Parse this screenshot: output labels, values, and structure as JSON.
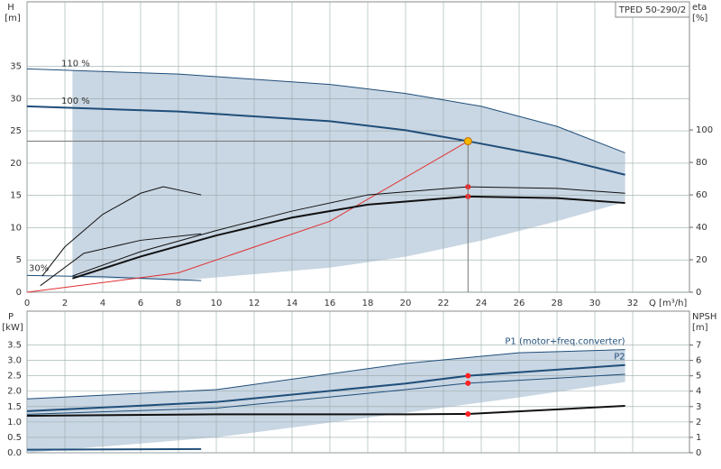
{
  "chart_data": [
    {
      "type": "line",
      "title": "TPED 50-290/2",
      "ylabel": "H",
      "yunit": "[m]",
      "y2label": "eta",
      "y2unit": "[%]",
      "xlabel": "Q [m³/h]",
      "xlim": [
        0,
        35
      ],
      "xticks": [
        0,
        2,
        4,
        6,
        8,
        10,
        12,
        14,
        16,
        18,
        20,
        22,
        24,
        26,
        28,
        30,
        32
      ],
      "ylim": [
        0,
        45
      ],
      "yticks": [
        0,
        5,
        10,
        15,
        20,
        25,
        30,
        35
      ],
      "y2lim": [
        0,
        179
      ],
      "y2ticks": [
        0,
        20,
        40,
        60,
        80,
        100
      ],
      "grid": true,
      "series": [
        {
          "style": "band",
          "color": "#c9d6e3",
          "x": [
            2.4,
            8,
            16,
            20,
            24,
            28,
            31.6
          ],
          "values": [
            34.4,
            33.8,
            32.2,
            30.8,
            28.8,
            25.7,
            21.6
          ],
          "lower": [
            2.3,
            1.8,
            3.8,
            5.5,
            8,
            11,
            14
          ]
        },
        {
          "name": "110 %",
          "color": "#1f4e79",
          "x": [
            0,
            8,
            16,
            20,
            24,
            28,
            31.6
          ],
          "values": [
            34.6,
            33.8,
            32.2,
            30.8,
            28.8,
            25.7,
            21.6
          ]
        },
        {
          "name": "100 %",
          "color": "#1f4e79",
          "width": 2,
          "x": [
            0,
            8,
            16,
            20,
            23.3,
            28,
            31.6
          ],
          "values": [
            28.8,
            28,
            26.5,
            25.1,
            23.4,
            20.8,
            18.2
          ]
        },
        {
          "name": "30%",
          "color": "#1f4e79",
          "x": [
            0,
            4,
            9.2
          ],
          "values": [
            2.6,
            2.4,
            1.8
          ]
        },
        {
          "color": "#e03030",
          "x": [
            0,
            8,
            16,
            23.3
          ],
          "values": [
            0,
            3,
            11,
            23.4
          ]
        },
        {
          "color": "#111",
          "width": 2,
          "axis": "y2",
          "x": [
            2.4,
            6,
            10,
            14,
            18,
            23.3,
            28,
            31.6
          ],
          "values": [
            8.5,
            22,
            35,
            46,
            54,
            59,
            58,
            55
          ]
        },
        {
          "color": "#111",
          "axis": "y2",
          "x": [
            2.4,
            6,
            10,
            14,
            18,
            23.3,
            28,
            31.6
          ],
          "values": [
            10,
            25,
            38,
            50,
            60,
            65,
            64,
            61
          ]
        },
        {
          "color": "#111",
          "axis": "y2",
          "x": [
            0.8,
            2,
            4,
            6,
            7.2,
            9.2
          ],
          "values": [
            10,
            28,
            48,
            61,
            65,
            60
          ]
        },
        {
          "color": "#111",
          "axis": "y2",
          "x": [
            0.7,
            3,
            6,
            9.2
          ],
          "values": [
            4,
            24,
            32,
            36
          ]
        },
        {
          "style": "points",
          "color": "#ff2020",
          "axis": "y2",
          "x": [
            23.3,
            23.3
          ],
          "values": [
            65,
            59
          ]
        },
        {
          "style": "points",
          "guides": true,
          "color": "#f5b800",
          "x": [
            23.3
          ],
          "values": [
            23.4
          ]
        }
      ]
    },
    {
      "type": "line",
      "ylabel": "P",
      "yunit": "[kW]",
      "y2label": "NPSH",
      "y2unit": "[m]",
      "xlim": [
        0,
        35
      ],
      "xticks": [
        0,
        2,
        4,
        6,
        8,
        10,
        12,
        14,
        16,
        18,
        20,
        22,
        24,
        26,
        28,
        30,
        32
      ],
      "ylim": [
        0,
        4.6
      ],
      "yticks": [
        {
          "value": 0,
          "label": "0.0"
        },
        0.5,
        {
          "value": 1,
          "label": "1.0"
        },
        1.5,
        {
          "value": 2,
          "label": "2.0"
        },
        2.5,
        {
          "value": 3,
          "label": "3.0"
        },
        3.5
      ],
      "y2lim": [
        0,
        9.2
      ],
      "y2ticks": [
        0,
        1,
        2,
        3,
        4,
        5,
        6,
        7
      ],
      "grid": true,
      "series": [
        {
          "style": "band",
          "color": "#c9d6e3",
          "x": [
            0,
            10,
            20,
            26,
            31.6
          ],
          "values": [
            1.75,
            2.05,
            2.9,
            3.25,
            3.35
          ],
          "lower": [
            0,
            0.5,
            1.3,
            1.8,
            2.3
          ]
        },
        {
          "name": "P1 (motor+freq.converter)",
          "color": "#1f4e79",
          "x": [
            0,
            10,
            20,
            26,
            31.6
          ],
          "values": [
            1.75,
            2.05,
            2.9,
            3.25,
            3.35
          ]
        },
        {
          "name": "P2",
          "color": "#1f4e79",
          "width": 2,
          "x": [
            0,
            10,
            20,
            23.3,
            31.6
          ],
          "values": [
            1.35,
            1.65,
            2.25,
            2.5,
            2.85
          ]
        },
        {
          "color": "#1f4e79",
          "x": [
            0,
            10,
            20,
            23.3,
            31.6
          ],
          "values": [
            1.25,
            1.45,
            2.05,
            2.26,
            2.55
          ]
        },
        {
          "color": "#111",
          "width": 2,
          "axis": "y2",
          "x": [
            0,
            10,
            20,
            23.3,
            31.6
          ],
          "values": [
            2.4,
            2.5,
            2.5,
            2.52,
            3.05
          ]
        },
        {
          "color": "#1f4e79",
          "width": 2,
          "x": [
            0,
            9.2
          ],
          "values": [
            0.1,
            0.12
          ]
        },
        {
          "style": "points",
          "color": "#ff2020",
          "x": [
            23.3,
            23.3
          ],
          "values": [
            2.5,
            2.26
          ]
        },
        {
          "style": "points",
          "color": "#ff2020",
          "axis": "y2",
          "x": [
            23.3
          ],
          "values": [
            2.52
          ]
        }
      ]
    }
  ]
}
